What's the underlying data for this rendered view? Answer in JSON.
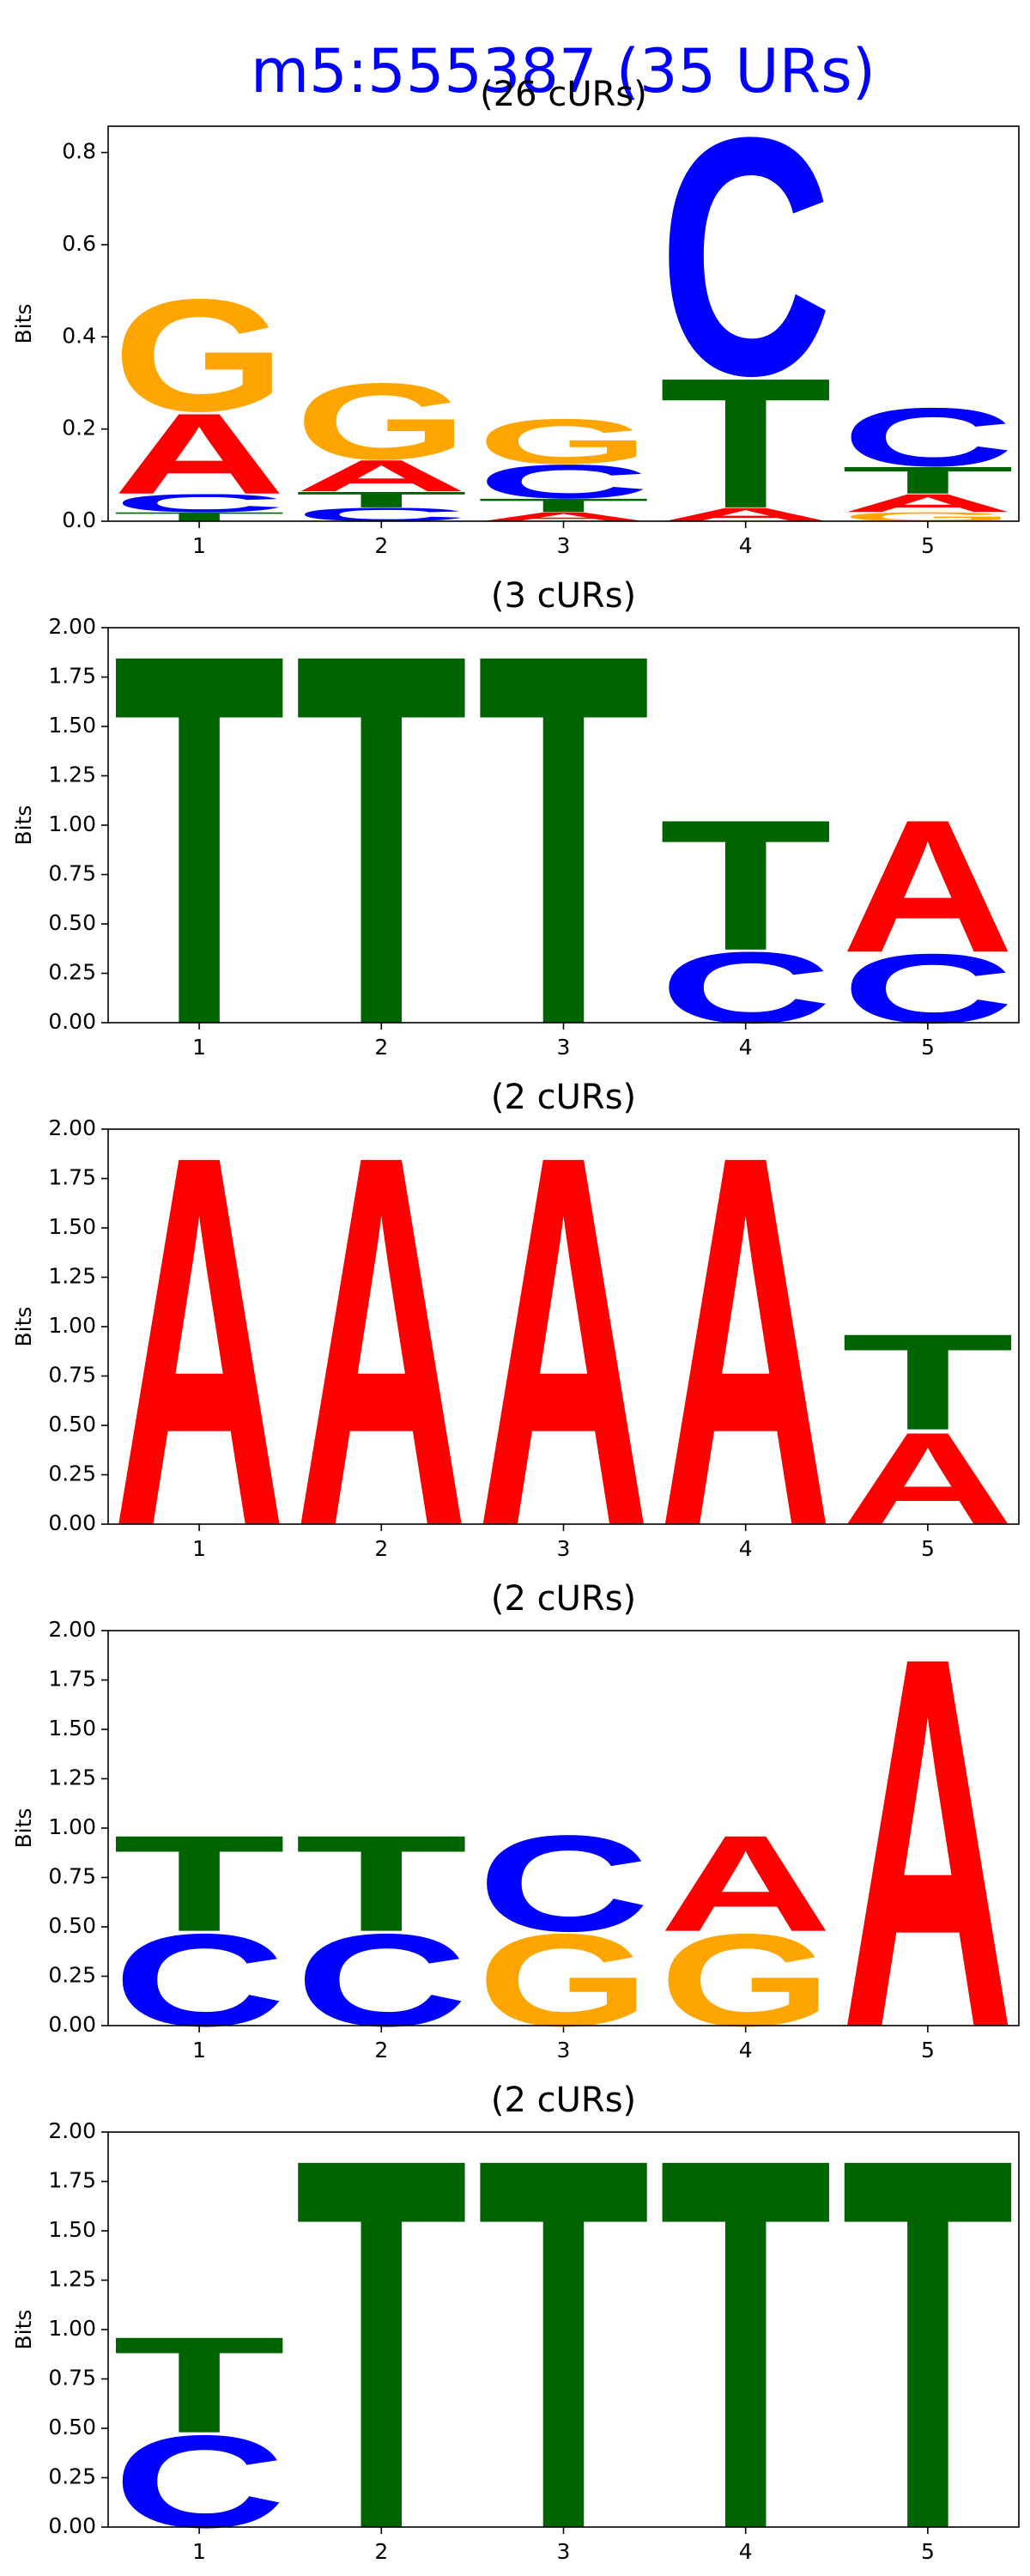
{
  "title": "m5:555387 (35 URs)",
  "chart_data": [
    {
      "type": "logo",
      "title": "(26 cURs)",
      "ylabel": "Bits",
      "x": [
        1,
        2,
        3,
        4,
        5
      ],
      "xlim": [
        0.5,
        5.5
      ],
      "xticks": [
        1,
        2,
        3,
        4,
        5
      ],
      "ylim": [
        0,
        0.857
      ],
      "yticks": [
        {
          "value": 0,
          "label": "0.0"
        },
        0.2,
        0.4,
        0.6,
        0.8
      ],
      "series": [
        {
          "name": "A",
          "color": "#ff0000",
          "values": [
            0.18,
            0.07,
            0.02,
            0.03,
            0.04
          ]
        },
        {
          "name": "C",
          "color": "#0000ff",
          "values": [
            0.04,
            0.03,
            0.075,
            0.53,
            0.13
          ]
        },
        {
          "name": "G",
          "color": "#ffa500",
          "values": [
            0.25,
            0.17,
            0.1,
            0,
            0.02
          ]
        },
        {
          "name": "T",
          "color": "#006400",
          "values": [
            0.02,
            0.035,
            0.03,
            0.29,
            0.06
          ]
        }
      ]
    },
    {
      "type": "logo",
      "title": "(3 cURs)",
      "ylabel": "Bits",
      "x": [
        1,
        2,
        3,
        4,
        5
      ],
      "xlim": [
        0.5,
        5.5
      ],
      "xticks": [
        1,
        2,
        3,
        4,
        5
      ],
      "ylim": [
        0,
        2
      ],
      "yticks": [
        {
          "value": 0,
          "label": "0.00"
        },
        0.25,
        {
          "value": 0.5,
          "label": "0.50"
        },
        0.75,
        {
          "value": 1,
          "label": "1.00"
        },
        1.25,
        {
          "value": 1.5,
          "label": "1.50"
        },
        1.75,
        {
          "value": 2,
          "label": "2.00"
        }
      ],
      "series": [
        {
          "name": "A",
          "color": "#ff0000",
          "values": [
            0,
            0,
            0,
            0,
            0.69
          ]
        },
        {
          "name": "C",
          "color": "#0000ff",
          "values": [
            0,
            0,
            0,
            0.37,
            0.36
          ]
        },
        {
          "name": "G",
          "color": "#ffa500",
          "values": [
            0,
            0,
            0,
            0,
            0
          ]
        },
        {
          "name": "T",
          "color": "#006400",
          "values": [
            1.93,
            1.93,
            1.93,
            0.68,
            0
          ]
        }
      ]
    },
    {
      "type": "logo",
      "title": "(2 cURs)",
      "ylabel": "Bits",
      "x": [
        1,
        2,
        3,
        4,
        5
      ],
      "xlim": [
        0.5,
        5.5
      ],
      "xticks": [
        1,
        2,
        3,
        4,
        5
      ],
      "ylim": [
        0,
        2
      ],
      "yticks": [
        {
          "value": 0,
          "label": "0.00"
        },
        0.25,
        {
          "value": 0.5,
          "label": "0.50"
        },
        0.75,
        {
          "value": 1,
          "label": "1.00"
        },
        1.25,
        {
          "value": 1.5,
          "label": "1.50"
        },
        1.75,
        {
          "value": 2,
          "label": "2.00"
        }
      ],
      "series": [
        {
          "name": "A",
          "color": "#ff0000",
          "values": [
            1.93,
            1.93,
            1.93,
            1.93,
            0.48
          ]
        },
        {
          "name": "C",
          "color": "#0000ff",
          "values": [
            0,
            0,
            0,
            0,
            0
          ]
        },
        {
          "name": "G",
          "color": "#ffa500",
          "values": [
            0,
            0,
            0,
            0,
            0
          ]
        },
        {
          "name": "T",
          "color": "#006400",
          "values": [
            0,
            0,
            0,
            0,
            0.5
          ]
        }
      ]
    },
    {
      "type": "logo",
      "title": "(2 cURs)",
      "ylabel": "Bits",
      "x": [
        1,
        2,
        3,
        4,
        5
      ],
      "xlim": [
        0.5,
        5.5
      ],
      "xticks": [
        1,
        2,
        3,
        4,
        5
      ],
      "ylim": [
        0,
        2
      ],
      "yticks": [
        {
          "value": 0,
          "label": "0.00"
        },
        0.25,
        {
          "value": 0.5,
          "label": "0.50"
        },
        0.75,
        {
          "value": 1,
          "label": "1.00"
        },
        1.25,
        {
          "value": 1.5,
          "label": "1.50"
        },
        1.75,
        {
          "value": 2,
          "label": "2.00"
        }
      ],
      "series": [
        {
          "name": "A",
          "color": "#ff0000",
          "values": [
            0,
            0,
            0,
            0.5,
            1.93
          ]
        },
        {
          "name": "C",
          "color": "#0000ff",
          "values": [
            0.48,
            0.48,
            0.5,
            0,
            0
          ]
        },
        {
          "name": "G",
          "color": "#ffa500",
          "values": [
            0,
            0,
            0.48,
            0.48,
            0
          ]
        },
        {
          "name": "T",
          "color": "#006400",
          "values": [
            0.5,
            0.5,
            0,
            0,
            0
          ]
        }
      ]
    },
    {
      "type": "logo",
      "title": "(2 cURs)",
      "ylabel": "Bits",
      "x": [
        1,
        2,
        3,
        4,
        5
      ],
      "xlim": [
        0.5,
        5.5
      ],
      "xticks": [
        1,
        2,
        3,
        4,
        5
      ],
      "ylim": [
        0,
        2
      ],
      "yticks": [
        {
          "value": 0,
          "label": "0.00"
        },
        0.25,
        {
          "value": 0.5,
          "label": "0.50"
        },
        0.75,
        {
          "value": 1,
          "label": "1.00"
        },
        1.25,
        {
          "value": 1.5,
          "label": "1.50"
        },
        1.75,
        {
          "value": 2,
          "label": "2.00"
        }
      ],
      "series": [
        {
          "name": "A",
          "color": "#ff0000",
          "values": [
            0,
            0,
            0,
            0,
            0
          ]
        },
        {
          "name": "C",
          "color": "#0000ff",
          "values": [
            0.48,
            0,
            0,
            0,
            0
          ]
        },
        {
          "name": "G",
          "color": "#ffa500",
          "values": [
            0,
            0,
            0,
            0,
            0
          ]
        },
        {
          "name": "T",
          "color": "#006400",
          "values": [
            0.5,
            1.93,
            1.93,
            1.93,
            1.93
          ]
        }
      ]
    }
  ]
}
